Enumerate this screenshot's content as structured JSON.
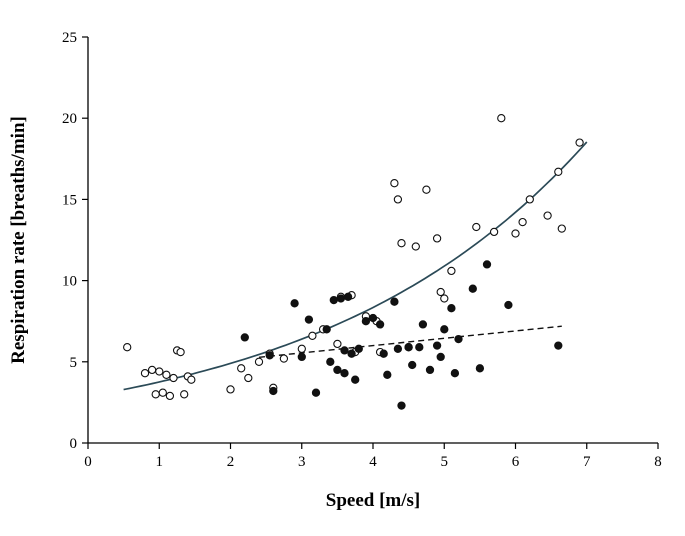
{
  "chart_data": {
    "type": "scatter",
    "title": "",
    "xlabel": "Speed [m/s]",
    "ylabel": "Respiration rate [breaths/min]",
    "xlim": [
      0,
      8
    ],
    "ylim": [
      0,
      25
    ],
    "xticks": [
      0,
      1,
      2,
      3,
      4,
      5,
      6,
      7,
      8
    ],
    "yticks": [
      0,
      5,
      10,
      15,
      20,
      25
    ],
    "grid": false,
    "legend": "none",
    "marker_color": "#111111",
    "solid_fit_color": "#2b4a57",
    "dashed_fit_color": "#111111",
    "series": [
      {
        "name": "open-circles",
        "marker": "open-circle",
        "points": [
          [
            0.55,
            5.9
          ],
          [
            0.8,
            4.3
          ],
          [
            0.9,
            4.5
          ],
          [
            0.95,
            3.0
          ],
          [
            1.0,
            4.4
          ],
          [
            1.05,
            3.1
          ],
          [
            1.1,
            4.2
          ],
          [
            1.15,
            2.9
          ],
          [
            1.2,
            4.0
          ],
          [
            1.25,
            5.7
          ],
          [
            1.3,
            5.6
          ],
          [
            1.35,
            3.0
          ],
          [
            1.4,
            4.1
          ],
          [
            1.45,
            3.9
          ],
          [
            2.0,
            3.3
          ],
          [
            2.15,
            4.6
          ],
          [
            2.25,
            4.0
          ],
          [
            2.4,
            5.0
          ],
          [
            2.55,
            5.5
          ],
          [
            2.6,
            3.4
          ],
          [
            2.75,
            5.2
          ],
          [
            3.0,
            5.8
          ],
          [
            3.15,
            6.6
          ],
          [
            3.3,
            7.0
          ],
          [
            3.5,
            6.1
          ],
          [
            3.55,
            9.0
          ],
          [
            3.7,
            9.1
          ],
          [
            3.75,
            5.6
          ],
          [
            3.9,
            7.8
          ],
          [
            4.05,
            7.5
          ],
          [
            4.1,
            5.6
          ],
          [
            4.3,
            16.0
          ],
          [
            4.35,
            15.0
          ],
          [
            4.4,
            12.3
          ],
          [
            4.5,
            5.9
          ],
          [
            4.6,
            12.1
          ],
          [
            4.75,
            15.6
          ],
          [
            4.9,
            12.6
          ],
          [
            4.95,
            9.3
          ],
          [
            5.0,
            8.9
          ],
          [
            5.1,
            10.6
          ],
          [
            5.45,
            13.3
          ],
          [
            5.7,
            13.0
          ],
          [
            5.8,
            20.0
          ],
          [
            6.0,
            12.9
          ],
          [
            6.1,
            13.6
          ],
          [
            6.2,
            15.0
          ],
          [
            6.45,
            14.0
          ],
          [
            6.6,
            16.7
          ],
          [
            6.65,
            13.2
          ],
          [
            6.9,
            18.5
          ]
        ]
      },
      {
        "name": "filled-circles",
        "marker": "filled-circle",
        "points": [
          [
            2.2,
            6.5
          ],
          [
            2.55,
            5.4
          ],
          [
            2.6,
            3.2
          ],
          [
            2.9,
            8.6
          ],
          [
            3.0,
            5.3
          ],
          [
            3.1,
            7.6
          ],
          [
            3.2,
            3.1
          ],
          [
            3.35,
            7.0
          ],
          [
            3.4,
            5.0
          ],
          [
            3.45,
            8.8
          ],
          [
            3.5,
            4.5
          ],
          [
            3.55,
            8.9
          ],
          [
            3.6,
            5.7
          ],
          [
            3.6,
            4.3
          ],
          [
            3.65,
            9.0
          ],
          [
            3.7,
            5.5
          ],
          [
            3.75,
            3.9
          ],
          [
            3.8,
            5.8
          ],
          [
            3.9,
            7.5
          ],
          [
            4.0,
            7.7
          ],
          [
            4.1,
            7.3
          ],
          [
            4.15,
            5.5
          ],
          [
            4.2,
            4.2
          ],
          [
            4.3,
            8.7
          ],
          [
            4.35,
            5.8
          ],
          [
            4.4,
            2.3
          ],
          [
            4.5,
            5.9
          ],
          [
            4.55,
            4.8
          ],
          [
            4.65,
            5.9
          ],
          [
            4.7,
            7.3
          ],
          [
            4.8,
            4.5
          ],
          [
            4.9,
            6.0
          ],
          [
            4.95,
            5.3
          ],
          [
            5.0,
            7.0
          ],
          [
            5.1,
            8.3
          ],
          [
            5.15,
            4.3
          ],
          [
            5.2,
            6.4
          ],
          [
            5.4,
            9.5
          ],
          [
            5.5,
            4.6
          ],
          [
            5.6,
            11.0
          ],
          [
            5.9,
            8.5
          ],
          [
            6.6,
            6.0
          ]
        ]
      }
    ],
    "fits": [
      {
        "name": "exponential-fit-open-circles",
        "style": "solid",
        "model": "exponential",
        "a": 2.88,
        "b": 0.266,
        "x_range": [
          0.5,
          7.0
        ]
      },
      {
        "name": "linear-fit-filled-circles",
        "style": "dashed",
        "model": "linear",
        "intercept": 4.2,
        "slope": 0.45,
        "x_range": [
          2.4,
          6.65
        ]
      }
    ]
  }
}
